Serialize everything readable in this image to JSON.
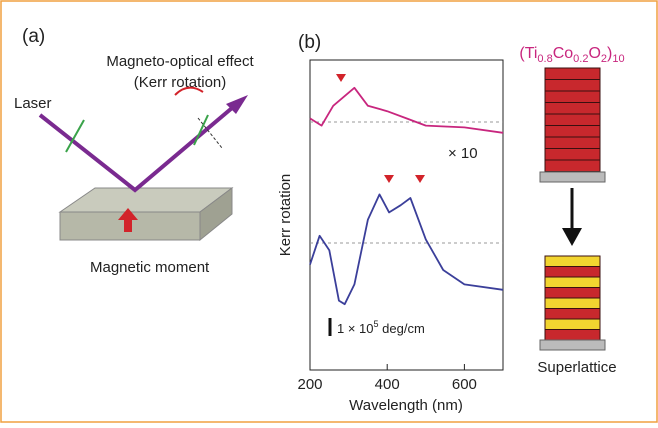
{
  "panel_a": {
    "label": "(a)",
    "effect_line1": "Magneto-optical effect",
    "effect_line2": "(Kerr rotation)",
    "laser": "Laser",
    "moment": "Magnetic moment"
  },
  "chart_data": {
    "type": "line",
    "panel_label": "(b)",
    "y_label": "Kerr rotation",
    "x_label": "Wavelength (nm)",
    "xlim": [
      200,
      700
    ],
    "xticks": [
      200,
      400,
      600
    ],
    "magnification": "× 10",
    "scale_bar_parts": [
      "1 × 10",
      "5",
      " deg/cm"
    ],
    "series": [
      {
        "color": "#c8267e",
        "x": [
          200,
          230,
          260,
          315,
          350,
          400,
          450,
          500,
          600,
          700
        ],
        "values": [
          0.2,
          -0.2,
          0.9,
          1.9,
          0.9,
          0.6,
          0.2,
          -0.2,
          -0.3,
          -0.6
        ]
      },
      {
        "color": "#3b3f9a",
        "x": [
          200,
          225,
          250,
          275,
          290,
          315,
          350,
          380,
          405,
          435,
          460,
          500,
          545,
          600,
          700
        ],
        "values": [
          -1.2,
          0.4,
          -0.4,
          -3.2,
          -3.4,
          -2.3,
          1.3,
          2.7,
          1.7,
          2.1,
          2.5,
          0.2,
          -1.5,
          -2.3,
          -2.6
        ]
      }
    ]
  },
  "panel_c": {
    "formula_parts": [
      "(Ti",
      "0.8",
      "Co",
      "0.2",
      "O",
      "2",
      ")",
      "10"
    ],
    "bottom_label": "Superlattice"
  }
}
